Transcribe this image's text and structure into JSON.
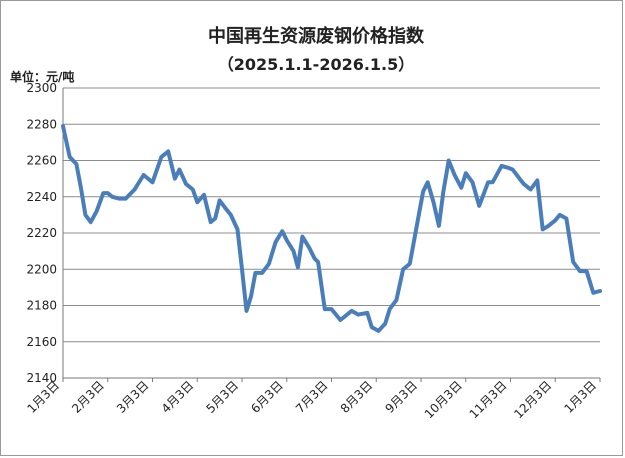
{
  "chart_data": {
    "type": "line",
    "title": "中国再生资源废钢价格指数",
    "subtitle": "（2025.1.1-2026.1.5）",
    "ylabel": "单位：元/吨",
    "ylim": [
      2140,
      2300
    ],
    "yticks": [
      2140,
      2160,
      2180,
      2200,
      2220,
      2240,
      2260,
      2280,
      2300
    ],
    "grid": true,
    "legend": "none",
    "categories": [
      "1月3日",
      "2月3日",
      "3月3日",
      "4月3日",
      "5月3日",
      "6月3日",
      "7月3日",
      "8月3日",
      "9月3日",
      "10月3日",
      "11月3日",
      "12月3日",
      "1月3日"
    ],
    "series": [
      {
        "color": "#4a7ebb",
        "x": [
          0,
          0.15,
          0.3,
          0.4,
          0.5,
          0.62,
          0.75,
          0.9,
          1.0,
          1.1,
          1.25,
          1.4,
          1.6,
          1.8,
          2.0,
          2.2,
          2.35,
          2.5,
          2.6,
          2.75,
          2.9,
          3.0,
          3.15,
          3.3,
          3.4,
          3.5,
          3.62,
          3.75,
          3.9,
          4.0,
          4.1,
          4.2,
          4.3,
          4.45,
          4.6,
          4.75,
          4.9,
          5.0,
          5.15,
          5.25,
          5.35,
          5.5,
          5.62,
          5.7,
          5.85,
          6.0,
          6.2,
          6.45,
          6.6,
          6.8,
          6.9,
          7.05,
          7.2,
          7.3,
          7.45,
          7.6,
          7.75,
          7.95,
          8.05,
          8.15,
          8.28,
          8.4,
          8.5,
          8.62,
          8.75,
          8.9,
          9.0,
          9.15,
          9.3,
          9.5,
          9.6,
          9.8,
          9.95,
          10.05,
          10.2,
          10.3,
          10.45,
          10.6,
          10.72,
          10.85,
          11.0,
          11.1,
          11.25,
          11.4,
          11.55,
          11.7,
          11.85,
          12.0
        ],
        "values": [
          2279,
          2262,
          2258,
          2245,
          2230,
          2226,
          2232,
          2242,
          2242,
          2240,
          2239,
          2239,
          2244,
          2252,
          2248,
          2262,
          2265,
          2250,
          2255,
          2247,
          2244,
          2237,
          2241,
          2226,
          2228,
          2238,
          2234,
          2230,
          2222,
          2200,
          2177,
          2185,
          2198,
          2198,
          2203,
          2215,
          2221,
          2216,
          2210,
          2201,
          2218,
          2212,
          2206,
          2204,
          2178,
          2178,
          2172,
          2177,
          2175,
          2176,
          2168,
          2166,
          2170,
          2178,
          2183,
          2200,
          2203,
          2230,
          2243,
          2248,
          2237,
          2224,
          2243,
          2260,
          2252,
          2245,
          2253,
          2248,
          2235,
          2248,
          2248,
          2257,
          2256,
          2255,
          2250,
          2247,
          2244,
          2249,
          2222,
          2224,
          2227,
          2230,
          2228,
          2204,
          2199,
          2199,
          2187,
          2188
        ]
      }
    ]
  }
}
